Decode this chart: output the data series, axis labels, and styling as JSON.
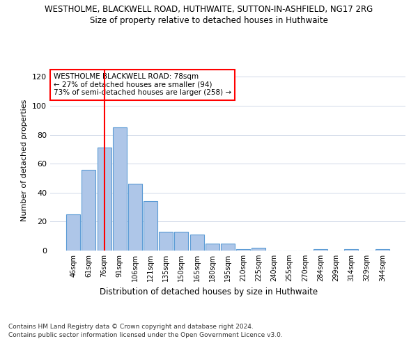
{
  "title_line1": "WESTHOLME, BLACKWELL ROAD, HUTHWAITE, SUTTON-IN-ASHFIELD, NG17 2RG",
  "title_line2": "Size of property relative to detached houses in Huthwaite",
  "xlabel": "Distribution of detached houses by size in Huthwaite",
  "ylabel": "Number of detached properties",
  "categories": [
    "46sqm",
    "61sqm",
    "76sqm",
    "91sqm",
    "106sqm",
    "121sqm",
    "135sqm",
    "150sqm",
    "165sqm",
    "180sqm",
    "195sqm",
    "210sqm",
    "225sqm",
    "240sqm",
    "255sqm",
    "270sqm",
    "284sqm",
    "299sqm",
    "314sqm",
    "329sqm",
    "344sqm"
  ],
  "values": [
    25,
    56,
    71,
    85,
    46,
    34,
    13,
    13,
    11,
    5,
    5,
    1,
    2,
    0,
    0,
    0,
    1,
    0,
    1,
    0,
    1
  ],
  "bar_color": "#AEC6E8",
  "bar_edge_color": "#5B9BD5",
  "highlight_bar_index": 2,
  "highlight_line_color": "#FF0000",
  "ylim": [
    0,
    125
  ],
  "yticks": [
    0,
    20,
    40,
    60,
    80,
    100,
    120
  ],
  "annotation_text": "WESTHOLME BLACKWELL ROAD: 78sqm\n← 27% of detached houses are smaller (94)\n73% of semi-detached houses are larger (258) →",
  "footer_line1": "Contains HM Land Registry data © Crown copyright and database right 2024.",
  "footer_line2": "Contains public sector information licensed under the Open Government Licence v3.0.",
  "background_color": "#FFFFFF",
  "grid_color": "#D0D8E8"
}
